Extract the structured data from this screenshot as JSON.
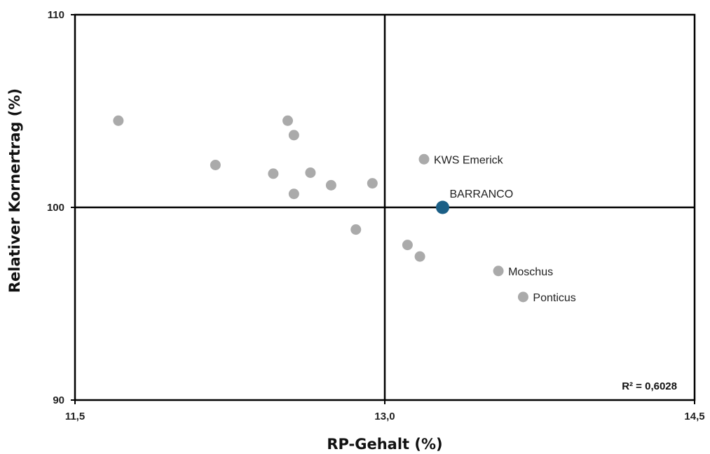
{
  "chart_data": {
    "type": "scatter",
    "title": "",
    "xlabel": "RP-Gehalt (%)",
    "ylabel": "Relativer Kornertrag (%)",
    "xlim": [
      11.5,
      14.5
    ],
    "ylim": [
      90,
      110
    ],
    "x_ticks": [
      {
        "value": 11.5,
        "label": "11,5"
      },
      {
        "value": 13.0,
        "label": "13,0"
      },
      {
        "value": 14.5,
        "label": "14,5"
      }
    ],
    "y_ticks": [
      {
        "value": 90,
        "label": "90"
      },
      {
        "value": 100,
        "label": "100"
      },
      {
        "value": 110,
        "label": "110"
      }
    ],
    "reference_lines": {
      "x": 13.0,
      "y": 100
    },
    "annotation": "R² = 0,6028",
    "colors": {
      "default_point": "#aaaaaa",
      "highlight_point": "#1b5f86",
      "axis": "#000000"
    },
    "points": [
      {
        "x": 11.71,
        "y": 104.5,
        "label": "",
        "highlight": false
      },
      {
        "x": 12.18,
        "y": 102.2,
        "label": "",
        "highlight": false
      },
      {
        "x": 12.46,
        "y": 101.75,
        "label": "",
        "highlight": false
      },
      {
        "x": 12.53,
        "y": 104.5,
        "label": "",
        "highlight": false
      },
      {
        "x": 12.56,
        "y": 103.75,
        "label": "",
        "highlight": false
      },
      {
        "x": 12.56,
        "y": 100.7,
        "label": "",
        "highlight": false
      },
      {
        "x": 12.64,
        "y": 101.8,
        "label": "",
        "highlight": false
      },
      {
        "x": 12.74,
        "y": 101.15,
        "label": "",
        "highlight": false
      },
      {
        "x": 12.86,
        "y": 98.85,
        "label": "",
        "highlight": false
      },
      {
        "x": 12.94,
        "y": 101.25,
        "label": "",
        "highlight": false
      },
      {
        "x": 13.11,
        "y": 98.05,
        "label": "",
        "highlight": false
      },
      {
        "x": 13.17,
        "y": 97.45,
        "label": "",
        "highlight": false
      },
      {
        "x": 13.19,
        "y": 102.5,
        "label": "KWS Emerick",
        "highlight": false
      },
      {
        "x": 13.28,
        "y": 100.0,
        "label": "BARRANCO",
        "highlight": true
      },
      {
        "x": 13.55,
        "y": 96.7,
        "label": "Moschus",
        "highlight": false
      },
      {
        "x": 13.67,
        "y": 95.35,
        "label": "Ponticus",
        "highlight": false
      }
    ]
  }
}
